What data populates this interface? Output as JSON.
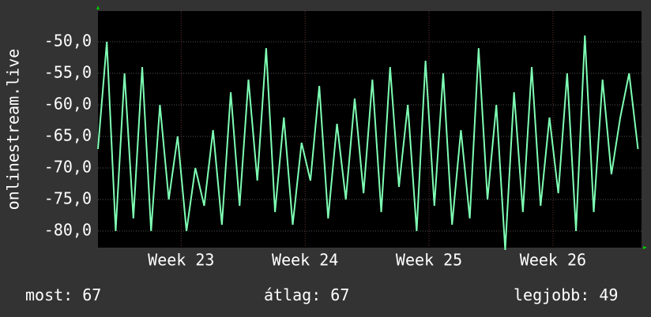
{
  "chart_data": {
    "type": "line",
    "y_label": "onlinestream.live",
    "x": [
      0,
      0.5,
      1,
      1.5,
      2,
      2.5,
      3,
      3.5,
      4,
      4.5,
      5,
      5.5,
      6,
      6.5,
      7,
      7.5,
      8,
      8.5,
      9,
      9.5,
      10,
      10.5,
      11,
      11.5,
      12,
      12.5,
      13,
      13.5,
      14,
      14.5,
      15,
      15.5,
      16,
      16.5,
      17,
      17.5,
      18,
      18.5,
      19,
      19.5,
      20,
      20.5,
      21,
      21.5,
      22,
      22.5,
      23,
      23.5,
      24,
      24.5,
      25,
      25.5,
      26,
      26.5,
      27,
      27.5,
      28,
      28.5,
      29,
      29.5,
      30,
      30.5
    ],
    "series": [
      {
        "color": "#7fffb4",
        "values": [
          -67,
          -50,
          -80,
          -55,
          -78,
          -54,
          -80,
          -60,
          -75,
          -65,
          -80,
          -70,
          -76,
          -64,
          -79,
          -58,
          -76,
          -56,
          -72,
          -51,
          -77,
          -62,
          -79,
          -66,
          -72,
          -57,
          -78,
          -63,
          -75,
          -59,
          -74,
          -56,
          -77,
          -54,
          -73,
          -60,
          -80,
          -53,
          -76,
          -55,
          -79,
          -64,
          -78,
          -51,
          -75,
          -60,
          -83,
          -58,
          -77,
          -54,
          -76,
          -62,
          -74,
          -55,
          -80,
          -49,
          -77,
          -56,
          -71,
          -62,
          -55,
          -67
        ]
      }
    ],
    "xlim": [
      0,
      30.7
    ],
    "xticks": [
      {
        "value": 4.7,
        "label": "Week 23"
      },
      {
        "value": 11.7,
        "label": "Week 24"
      },
      {
        "value": 18.7,
        "label": "Week 25"
      },
      {
        "value": 25.7,
        "label": "Week 26"
      }
    ],
    "ylim": [
      -82.625,
      -45.125
    ],
    "yticks": [
      {
        "value": -50,
        "label": "-50,0"
      },
      {
        "value": -55,
        "label": "-55,0"
      },
      {
        "value": -60,
        "label": "-60,0"
      },
      {
        "value": -65,
        "label": "-65,0"
      },
      {
        "value": -70,
        "label": "-70,0"
      },
      {
        "value": -75,
        "label": "-75,0"
      },
      {
        "value": -80,
        "label": "-80,0"
      }
    ],
    "grid": true,
    "legend": [
      {
        "label": "most:",
        "value": 67
      },
      {
        "label": "átlag:",
        "value": 67
      },
      {
        "label": "legjobb:",
        "value": 49
      }
    ]
  }
}
